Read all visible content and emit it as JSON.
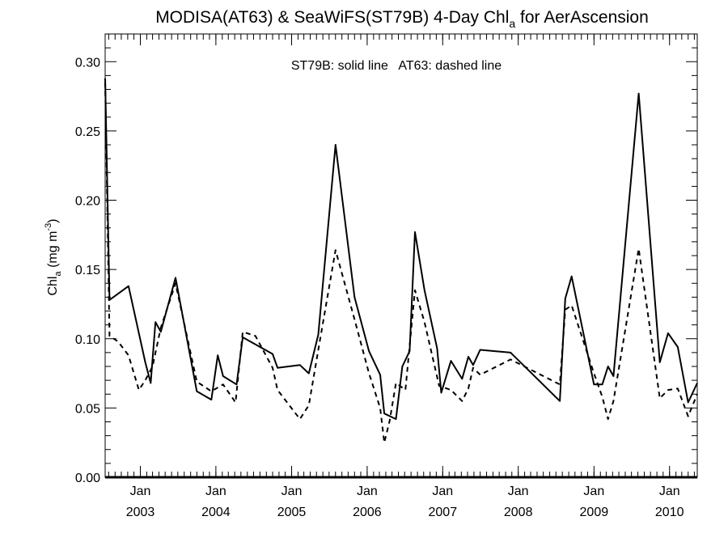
{
  "chart_data": {
    "type": "line",
    "title": "MODISA(AT63) & SeaWiFS(ST79B) 4-Day Chl",
    "title_subscript": "a",
    "title_suffix": " for AerAscension",
    "annotation": "ST79B: solid line   AT63: dashed line",
    "ylabel_main": "Chl",
    "ylabel_sub": "a",
    "ylabel_unit": " (mg m",
    "ylabel_sup": "-3",
    "ylabel_close": ")",
    "ylim": [
      0,
      0.32
    ],
    "yticks": [
      0.0,
      0.05,
      0.1,
      0.15,
      0.2,
      0.25,
      0.3
    ],
    "ytick_labels": [
      "0.00",
      "0.05",
      "0.10",
      "0.15",
      "0.20",
      "0.25",
      "0.30"
    ],
    "xlim": [
      "2002-07-15",
      "2010-05-15"
    ],
    "xticks": [
      {
        "date": "2003-01-01",
        "month": "Jan",
        "year": "2003"
      },
      {
        "date": "2004-01-01",
        "month": "Jan",
        "year": "2004"
      },
      {
        "date": "2005-01-01",
        "month": "Jan",
        "year": "2005"
      },
      {
        "date": "2006-01-01",
        "month": "Jan",
        "year": "2006"
      },
      {
        "date": "2007-01-01",
        "month": "Jan",
        "year": "2007"
      },
      {
        "date": "2008-01-01",
        "month": "Jan",
        "year": "2008"
      },
      {
        "date": "2009-01-01",
        "month": "Jan",
        "year": "2009"
      },
      {
        "date": "2010-01-01",
        "month": "Jan",
        "year": "2010"
      }
    ],
    "minor_ticks": "monthly",
    "grid": false,
    "series": [
      {
        "name": "ST79B",
        "style": "solid",
        "points": [
          [
            "2002-07-15",
            0.288
          ],
          [
            "2002-08-05",
            0.128
          ],
          [
            "2002-11-05",
            0.138
          ],
          [
            "2003-01-25",
            0.083
          ],
          [
            "2003-02-20",
            0.068
          ],
          [
            "2003-03-15",
            0.112
          ],
          [
            "2003-04-10",
            0.105
          ],
          [
            "2003-06-20",
            0.144
          ],
          [
            "2003-10-01",
            0.062
          ],
          [
            "2003-12-10",
            0.056
          ],
          [
            "2004-01-10",
            0.088
          ],
          [
            "2004-02-05",
            0.073
          ],
          [
            "2004-04-10",
            0.067
          ],
          [
            "2004-05-10",
            0.101
          ],
          [
            "2004-10-01",
            0.089
          ],
          [
            "2004-10-25",
            0.079
          ],
          [
            "2005-02-10",
            0.081
          ],
          [
            "2005-03-25",
            0.075
          ],
          [
            "2005-05-10",
            0.103
          ],
          [
            "2005-08-01",
            0.24
          ],
          [
            "2005-11-01",
            0.13
          ],
          [
            "2006-01-10",
            0.091
          ],
          [
            "2006-03-05",
            0.074
          ],
          [
            "2006-03-25",
            0.046
          ],
          [
            "2006-05-20",
            0.042
          ],
          [
            "2006-06-20",
            0.08
          ],
          [
            "2006-07-25",
            0.091
          ],
          [
            "2006-08-20",
            0.177
          ],
          [
            "2006-10-05",
            0.135
          ],
          [
            "2006-12-05",
            0.093
          ],
          [
            "2006-12-25",
            0.061
          ],
          [
            "2007-02-10",
            0.084
          ],
          [
            "2007-04-05",
            0.071
          ],
          [
            "2007-05-05",
            0.087
          ],
          [
            "2007-05-28",
            0.081
          ],
          [
            "2007-07-01",
            0.092
          ],
          [
            "2007-11-25",
            0.09
          ],
          [
            "2008-07-20",
            0.055
          ],
          [
            "2008-08-15",
            0.129
          ],
          [
            "2008-09-15",
            0.145
          ],
          [
            "2009-01-01",
            0.067
          ],
          [
            "2009-02-10",
            0.067
          ],
          [
            "2009-03-10",
            0.08
          ],
          [
            "2009-04-05",
            0.073
          ],
          [
            "2009-08-05",
            0.277
          ],
          [
            "2009-11-15",
            0.083
          ],
          [
            "2009-12-25",
            0.104
          ],
          [
            "2010-02-10",
            0.094
          ],
          [
            "2010-04-01",
            0.054
          ],
          [
            "2010-05-15",
            0.068
          ]
        ]
      },
      {
        "name": "AT63",
        "style": "dashed",
        "points": [
          [
            "2002-07-15",
            0.285
          ],
          [
            "2002-08-05",
            0.102
          ],
          [
            "2002-09-15",
            0.098
          ],
          [
            "2002-11-05",
            0.088
          ],
          [
            "2002-12-25",
            0.063
          ],
          [
            "2003-01-25",
            0.07
          ],
          [
            "2003-03-01",
            0.08
          ],
          [
            "2003-04-10",
            0.108
          ],
          [
            "2003-06-20",
            0.14
          ],
          [
            "2003-10-01",
            0.069
          ],
          [
            "2003-12-10",
            0.062
          ],
          [
            "2004-02-05",
            0.067
          ],
          [
            "2004-04-05",
            0.054
          ],
          [
            "2004-05-10",
            0.105
          ],
          [
            "2004-07-10",
            0.102
          ],
          [
            "2004-10-01",
            0.079
          ],
          [
            "2004-10-25",
            0.063
          ],
          [
            "2005-02-10",
            0.042
          ],
          [
            "2005-03-25",
            0.052
          ],
          [
            "2005-05-10",
            0.092
          ],
          [
            "2005-08-01",
            0.164
          ],
          [
            "2005-11-01",
            0.114
          ],
          [
            "2006-01-10",
            0.075
          ],
          [
            "2006-03-05",
            0.05
          ],
          [
            "2006-03-25",
            0.025
          ],
          [
            "2006-04-20",
            0.041
          ],
          [
            "2006-05-20",
            0.068
          ],
          [
            "2006-07-05",
            0.063
          ],
          [
            "2006-08-20",
            0.135
          ],
          [
            "2006-10-05",
            0.112
          ],
          [
            "2006-12-15",
            0.066
          ],
          [
            "2007-02-10",
            0.063
          ],
          [
            "2007-04-05",
            0.055
          ],
          [
            "2007-05-05",
            0.064
          ],
          [
            "2007-05-28",
            0.079
          ],
          [
            "2007-07-01",
            0.074
          ],
          [
            "2007-11-25",
            0.085
          ],
          [
            "2008-07-20",
            0.067
          ],
          [
            "2008-08-15",
            0.121
          ],
          [
            "2008-09-15",
            0.124
          ],
          [
            "2009-01-01",
            0.075
          ],
          [
            "2009-02-10",
            0.058
          ],
          [
            "2009-03-10",
            0.042
          ],
          [
            "2009-04-05",
            0.055
          ],
          [
            "2009-08-05",
            0.165
          ],
          [
            "2009-11-15",
            0.057
          ],
          [
            "2009-12-25",
            0.063
          ],
          [
            "2010-02-10",
            0.064
          ],
          [
            "2010-04-01",
            0.044
          ],
          [
            "2010-05-15",
            0.06
          ]
        ]
      }
    ]
  }
}
